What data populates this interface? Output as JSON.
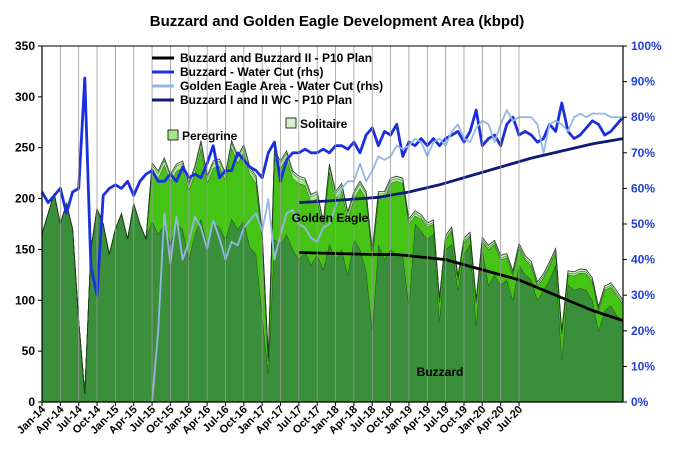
{
  "chart_data": {
    "type": "area",
    "title": "Buzzard and Golden Eagle Development Area (kbpd)",
    "xlabel": "",
    "ylabel": "",
    "ylim": [
      0,
      350
    ],
    "y2lim": [
      0,
      100
    ],
    "yticks": [
      "0",
      "50",
      "100",
      "150",
      "200",
      "250",
      "300",
      "350"
    ],
    "y2ticks": [
      "0%",
      "10%",
      "20%",
      "30%",
      "40%",
      "50%",
      "60%",
      "70%",
      "80%",
      "90%",
      "100%"
    ],
    "xticks": [
      "Jan-14",
      "Apr-14",
      "Jul-14",
      "Oct-14",
      "Jan-15",
      "Apr-15",
      "Jul-15",
      "Oct-15",
      "Jan-16",
      "Apr-16",
      "Jul-16",
      "Oct-16",
      "Jan-17",
      "Apr-17",
      "Jul-17",
      "Oct-17",
      "Jan-18",
      "Apr-18",
      "Jul-18",
      "Oct-18",
      "Jan-19",
      "Apr-19",
      "Jul-19",
      "Oct-19",
      "Jan-20",
      "Apr-20",
      "Jul-20"
    ],
    "grid": "vertical",
    "legend_placement": "top-center",
    "start_month": "Jan-14",
    "area_series": [
      {
        "name": "Buzzard",
        "color": "#3a8f3a",
        "values": [
          165,
          185,
          205,
          175,
          195,
          170,
          80,
          8,
          150,
          190,
          175,
          145,
          170,
          185,
          160,
          195,
          175,
          160,
          178,
          165,
          175,
          155,
          175,
          170,
          140,
          165,
          180,
          155,
          175,
          172,
          160,
          180,
          170,
          178,
          152,
          145,
          85,
          28,
          160,
          155,
          165,
          150,
          140,
          148,
          135,
          145,
          130,
          155,
          140,
          150,
          125,
          160,
          150,
          130,
          70,
          155,
          140,
          150,
          145,
          145,
          95,
          175,
          168,
          160,
          165,
          80,
          150,
          155,
          110,
          145,
          155,
          75,
          150,
          115,
          125,
          115,
          120,
          100,
          135,
          125,
          120,
          100,
          110,
          120,
          135,
          42,
          115,
          110,
          112,
          110,
          100,
          70,
          90,
          95,
          85,
          80
        ]
      },
      {
        "name": "Golden Eagle",
        "color": "#46c416",
        "values": [
          0,
          0,
          0,
          0,
          0,
          0,
          0,
          0,
          0,
          0,
          0,
          0,
          0,
          0,
          0,
          0,
          0,
          0,
          50,
          55,
          58,
          62,
          52,
          60,
          68,
          60,
          70,
          60,
          55,
          60,
          58,
          70,
          65,
          68,
          72,
          70,
          75,
          12,
          80,
          75,
          75,
          70,
          75,
          65,
          62,
          55,
          40,
          72,
          60,
          58,
          55,
          40,
          60,
          70,
          72,
          45,
          60,
          65,
          72,
          70,
          80,
          8,
          12,
          12,
          10,
          18,
          10,
          13,
          10,
          12,
          8,
          22,
          8,
          35,
          30,
          25,
          22,
          25,
          17,
          15,
          14,
          14,
          12,
          14,
          12,
          25,
          10,
          14,
          15,
          16,
          18,
          20,
          20,
          18,
          20,
          16
        ]
      },
      {
        "name": "Peregrine",
        "color": "#a8e88c",
        "values": [
          0,
          0,
          0,
          0,
          0,
          0,
          0,
          0,
          0,
          0,
          0,
          0,
          0,
          0,
          0,
          0,
          0,
          0,
          5,
          5,
          5,
          5,
          5,
          5,
          5,
          5,
          5,
          5,
          5,
          5,
          5,
          5,
          5,
          5,
          5,
          5,
          5,
          3,
          5,
          5,
          5,
          5,
          5,
          5,
          5,
          5,
          5,
          5,
          5,
          5,
          5,
          5,
          5,
          5,
          5,
          5,
          5,
          3,
          3,
          3,
          3,
          3,
          2,
          2,
          2,
          2,
          2,
          2,
          2,
          2,
          2,
          2,
          2,
          2,
          2,
          2,
          2,
          2,
          2,
          2,
          2,
          2,
          2,
          2,
          2,
          1,
          2,
          2,
          2,
          2,
          2,
          2,
          2,
          2,
          2,
          2
        ]
      },
      {
        "name": "Solitaire",
        "color": "#d7f2c9",
        "values": [
          0,
          0,
          0,
          0,
          0,
          0,
          0,
          0,
          0,
          0,
          0,
          0,
          0,
          0,
          0,
          0,
          0,
          0,
          2,
          2,
          2,
          2,
          2,
          2,
          2,
          2,
          2,
          2,
          2,
          2,
          2,
          2,
          2,
          2,
          2,
          2,
          2,
          2,
          2,
          2,
          2,
          2,
          2,
          2,
          2,
          2,
          2,
          2,
          2,
          2,
          2,
          2,
          2,
          2,
          2,
          2,
          2,
          2,
          2,
          2,
          2,
          2,
          2,
          2,
          2,
          2,
          2,
          2,
          2,
          2,
          2,
          2,
          2,
          2,
          2,
          2,
          2,
          2,
          2,
          2,
          2,
          2,
          2,
          2,
          2,
          2,
          2,
          2,
          2,
          2,
          2,
          2,
          2,
          2,
          2,
          2
        ]
      }
    ],
    "line_series": [
      {
        "name": "Buzzard and Buzzard II - P10 Plan",
        "color": "#000000",
        "axis": "left",
        "x": [
          42,
          54,
          58,
          66,
          78,
          90,
          95
        ],
        "values": [
          147,
          145,
          145,
          140,
          120,
          90,
          80
        ]
      },
      {
        "name": "Buzzard - Water Cut (rhs)",
        "color": "#1a2fe0",
        "axis": "right",
        "values": [
          59,
          56,
          58,
          60,
          53,
          59,
          60,
          91,
          38,
          30,
          58,
          60,
          61,
          60,
          62,
          58,
          62,
          64,
          65,
          62,
          62,
          64,
          62,
          66,
          63,
          64,
          63,
          67,
          72,
          63,
          65,
          65,
          70,
          68,
          66,
          65,
          63,
          70,
          73,
          62,
          68,
          70,
          70,
          71,
          70,
          70,
          71,
          70,
          72,
          72,
          71,
          73,
          70,
          75,
          77,
          72,
          76,
          75,
          78,
          69,
          73,
          72,
          74,
          72,
          74,
          72,
          74,
          75,
          76,
          73,
          76,
          82,
          72,
          74,
          75,
          72,
          78,
          80,
          75,
          76,
          75,
          73,
          74,
          78,
          76,
          84,
          76,
          74,
          75,
          77,
          79,
          78,
          75,
          76,
          78,
          80
        ]
      },
      {
        "name": "Golden Eagle Area - Water Cut (rhs)",
        "color": "#93b8e6",
        "axis": "right",
        "values": [
          null,
          null,
          null,
          null,
          null,
          null,
          null,
          null,
          null,
          null,
          null,
          null,
          null,
          null,
          null,
          null,
          null,
          null,
          0,
          20,
          53,
          39,
          52,
          40,
          45,
          52,
          49,
          43,
          51,
          46,
          40,
          45,
          44,
          49,
          51,
          53,
          48,
          57,
          40,
          47,
          53,
          54,
          50,
          49,
          46,
          45,
          49,
          50,
          55,
          60,
          62,
          62,
          67,
          62,
          65,
          69,
          68,
          69,
          72,
          71,
          72,
          74,
          73,
          69,
          73,
          74,
          72,
          76,
          78,
          74,
          73,
          77,
          79,
          78,
          73,
          78,
          82,
          79,
          80,
          80,
          80,
          78,
          70,
          78,
          79,
          78,
          76,
          80,
          81,
          80,
          81,
          81,
          81,
          80,
          80,
          80
        ]
      },
      {
        "name": "Buzzard I and II WC - P10 Plan",
        "color": "#0d1a78",
        "axis": "right",
        "x": [
          42,
          47,
          51,
          55,
          60,
          65,
          70,
          75,
          80,
          85,
          90,
          95
        ],
        "values": [
          56,
          56.5,
          57,
          57.5,
          59,
          61,
          63.5,
          66,
          68.5,
          70.5,
          72.5,
          74
        ]
      }
    ],
    "annotations": [
      "Peregrine",
      "Solitaire",
      "Golden Eagle",
      "Buzzard"
    ]
  }
}
